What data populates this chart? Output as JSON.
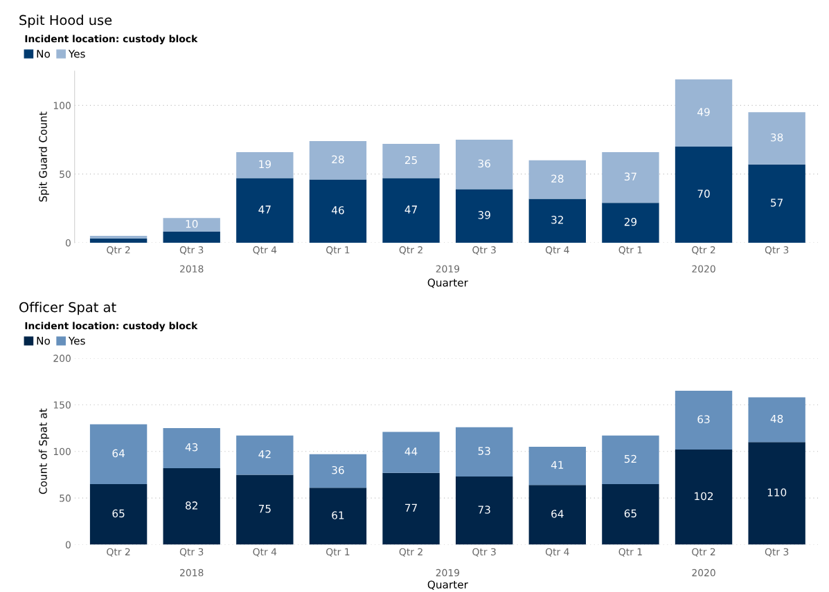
{
  "chart_data": [
    {
      "type": "bar",
      "title": "Spit Hood use",
      "legend_title": "Incident location: custody block",
      "xlabel": "Quarter",
      "ylabel": "Spit Guard Count",
      "categories": [
        "Qtr 2",
        "Qtr 3",
        "Qtr 4",
        "Qtr 1",
        "Qtr 2",
        "Qtr 3",
        "Qtr 4",
        "Qtr 1",
        "Qtr 2",
        "Qtr 3"
      ],
      "stacked": true,
      "series": [
        {
          "name": "No",
          "color": "#003a6e",
          "values": [
            3,
            8,
            47,
            46,
            47,
            39,
            32,
            29,
            70,
            57
          ],
          "value_labels": [
            null,
            null,
            "47",
            "46",
            "47",
            "39",
            "32",
            "29",
            "70",
            "57"
          ]
        },
        {
          "name": "Yes",
          "color": "#9ab5d4",
          "values": [
            2,
            10,
            19,
            28,
            25,
            36,
            28,
            37,
            49,
            38
          ],
          "value_labels": [
            null,
            "10",
            "19",
            "28",
            "25",
            "36",
            "28",
            "37",
            "49",
            "38"
          ]
        }
      ],
      "ylim": [
        0,
        125
      ],
      "yticks": [
        0,
        50,
        100
      ],
      "grid": "y",
      "legend": "top left",
      "annotations": [
        "2018",
        "2019",
        "2020"
      ]
    },
    {
      "type": "bar",
      "title": "Officer Spat at",
      "legend_title": "Incident location: custody block",
      "xlabel": "Quarter",
      "ylabel": "Count of Spat at",
      "categories": [
        "Qtr 2",
        "Qtr 3",
        "Qtr 4",
        "Qtr 1",
        "Qtr 2",
        "Qtr 3",
        "Qtr 4",
        "Qtr 1",
        "Qtr 2",
        "Qtr 3"
      ],
      "stacked": true,
      "series": [
        {
          "name": "No",
          "color": "#012549",
          "values": [
            65,
            82,
            75,
            61,
            77,
            73,
            64,
            65,
            102,
            110
          ]
        },
        {
          "name": "Yes",
          "color": "#6690bc",
          "values": [
            64,
            43,
            42,
            36,
            44,
            53,
            41,
            52,
            63,
            48
          ]
        }
      ],
      "data_labels": true,
      "ylim": [
        0,
        200
      ],
      "yticks": [
        0,
        50,
        100,
        150,
        200
      ],
      "grid": "y",
      "legend": "top left",
      "annotations": [
        "2018",
        "2019",
        "2020"
      ]
    }
  ]
}
